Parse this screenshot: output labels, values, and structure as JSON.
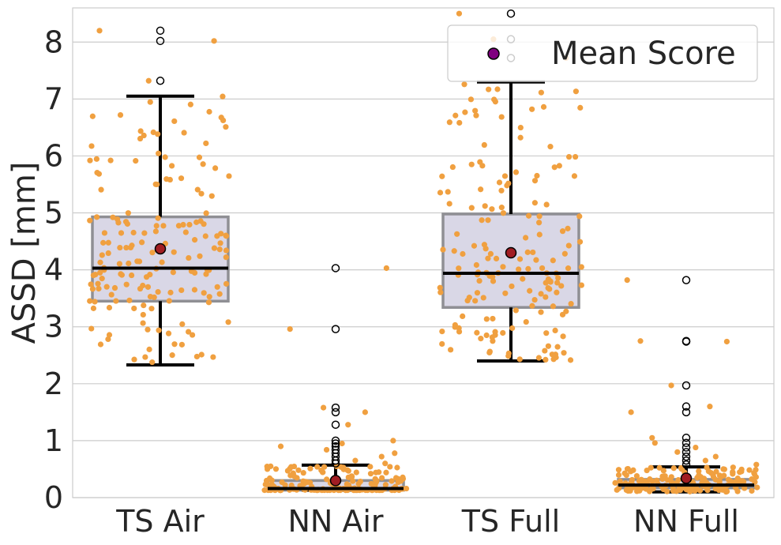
{
  "chart_data": {
    "type": "boxplot",
    "ylabel": "ASSD [mm]",
    "xlabel": "",
    "ylim": [
      0,
      8.6
    ],
    "yticks": [
      0,
      1,
      2,
      3,
      4,
      5,
      6,
      7,
      8
    ],
    "grid": true,
    "legend": {
      "label": "Mean Score",
      "position": "top-right"
    },
    "categories": [
      "TS Air",
      "NN Air",
      "TS Full",
      "NN Full"
    ],
    "colors": {
      "box_fill": "#d9d7e6",
      "box_edge": "#8f8f94",
      "whisker": "#000000",
      "point": "#f0a040",
      "mean": "#a11d23",
      "legend_marker": "#800080",
      "grid": "#cccccc",
      "axis_text": "#262626"
    },
    "boxes": [
      {
        "name": "TS Air",
        "q1": 3.45,
        "median": 4.03,
        "q3": 4.93,
        "whisker_low": 2.33,
        "whisker_high": 7.05,
        "mean": 4.37,
        "outliers": [
          7.32,
          8.02,
          8.2
        ]
      },
      {
        "name": "NN Air",
        "q1": 0.13,
        "median": 0.16,
        "q3": 0.3,
        "whisker_low": 0.13,
        "whisker_high": 0.57,
        "mean": 0.3,
        "outliers": [
          0.6,
          0.65,
          0.72,
          0.78,
          0.84,
          0.9,
          0.95,
          1.0,
          1.28,
          1.5,
          1.58,
          2.96,
          4.03
        ]
      },
      {
        "name": "TS Full",
        "q1": 3.34,
        "median": 3.94,
        "q3": 4.98,
        "whisker_low": 2.4,
        "whisker_high": 7.3,
        "mean": 4.3,
        "outliers": [
          7.72,
          8.05,
          8.5
        ]
      },
      {
        "name": "NN Full",
        "q1": 0.17,
        "median": 0.22,
        "q3": 0.32,
        "whisker_low": 0.1,
        "whisker_high": 0.54,
        "mean": 0.34,
        "outliers": [
          0.58,
          0.65,
          0.72,
          0.8,
          0.88,
          0.96,
          1.05,
          1.5,
          1.6,
          1.97,
          2.74,
          2.75,
          3.82
        ]
      }
    ]
  }
}
